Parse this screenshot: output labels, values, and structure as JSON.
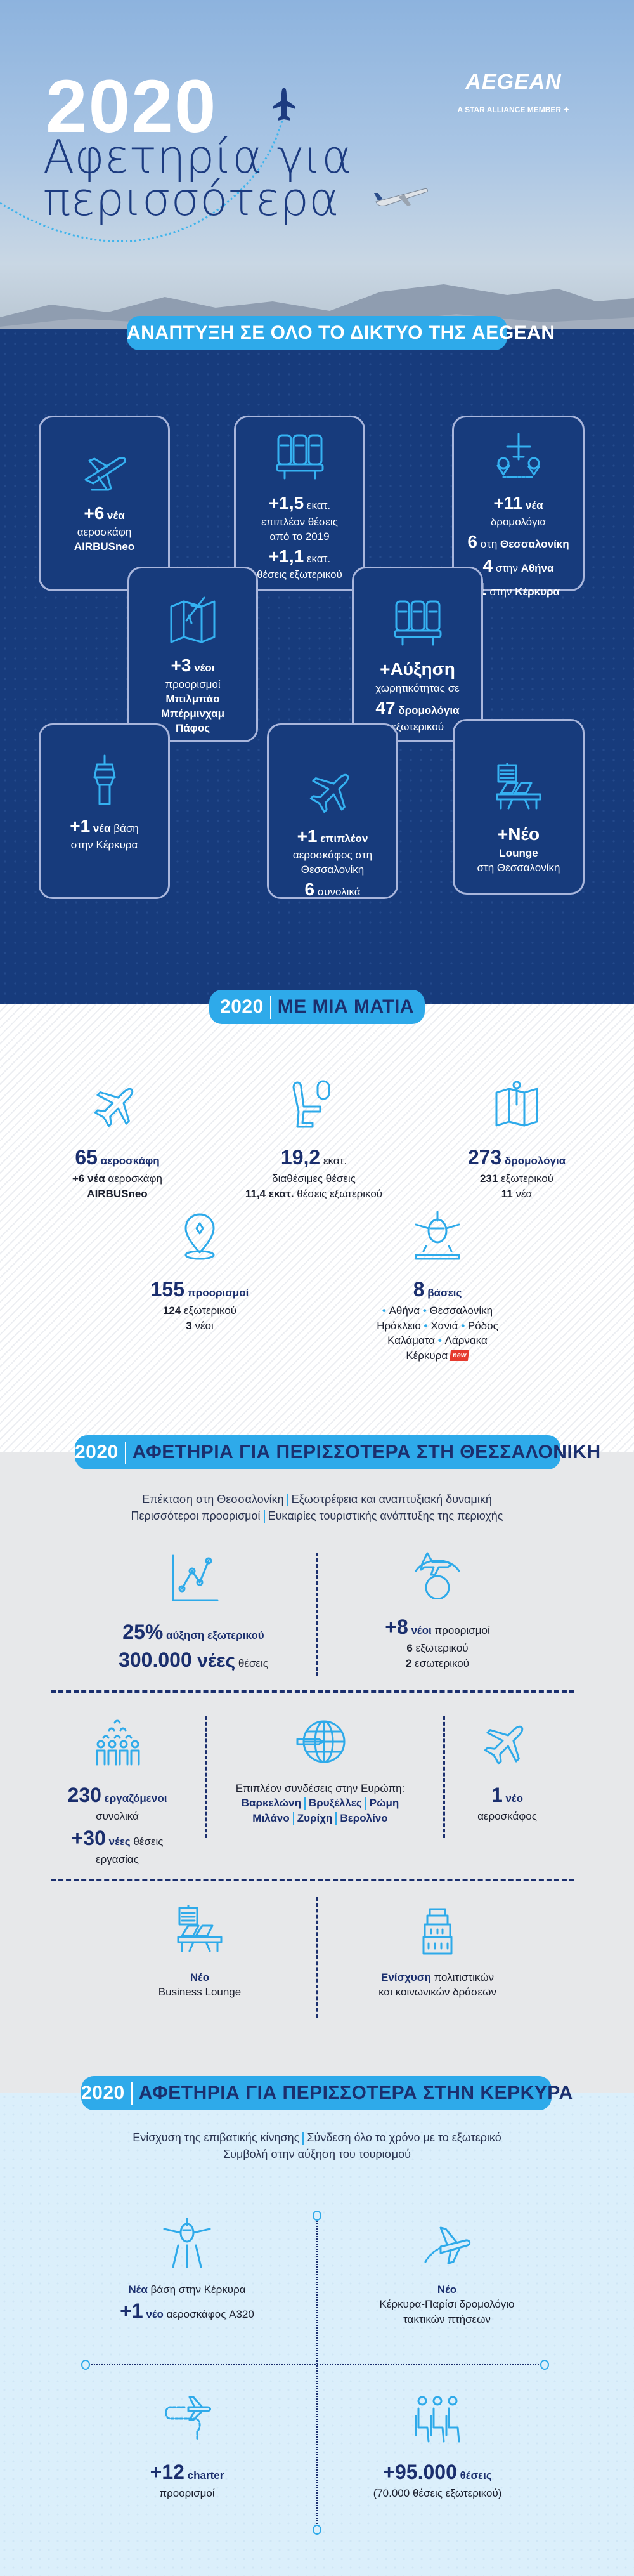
{
  "hero": {
    "year": "2020",
    "title_line1": "Αφετηρία για",
    "title_line2": "περισσότερα",
    "logo_text": "AEGEAN",
    "logo_tagline": "A STAR ALLIANCE MEMBER"
  },
  "colors": {
    "navy": "#173b7c",
    "accent": "#2eaaea",
    "text_navy": "#1b2f6e",
    "gray": "#e7e8ea",
    "light_blue": "#dbeffb",
    "new_badge": "#e63a2e"
  },
  "network": {
    "header": "ΑΝΑΠΤΥΞΗ ΣΕ ΟΛΟ ΤΟ ΔΙΚΤΥΟ ΤΗΣ AEGEAN",
    "boxes": [
      {
        "icon": "airplane-takeoff-icon",
        "lines": [
          [
            {
              "t": "+6",
              "s": "big"
            },
            {
              "t": " νέα",
              "s": "b"
            }
          ],
          [
            {
              "t": "αεροσκάφη"
            }
          ],
          [
            {
              "t": "AIRBUSneo",
              "s": "b"
            }
          ]
        ]
      },
      {
        "icon": "seats-row-icon",
        "lines": [
          [
            {
              "t": "+1,5",
              "s": "big"
            },
            {
              "t": " εκατ."
            }
          ],
          [
            {
              "t": "επιπλέον θέσεις"
            }
          ],
          [
            {
              "t": "από το 2019"
            }
          ],
          [
            {
              "t": "+1,1",
              "s": "big"
            },
            {
              "t": " εκατ."
            }
          ],
          [
            {
              "t": "θέσεις εξωτερικού"
            }
          ]
        ]
      },
      {
        "icon": "route-plane-icon",
        "lines": [
          [
            {
              "t": "+11",
              "s": "big"
            },
            {
              "t": " νέα",
              "s": "b"
            }
          ],
          [
            {
              "t": "δρομολόγια"
            }
          ],
          [
            {
              "t": "6",
              "s": "big"
            },
            {
              "t": " στη "
            },
            {
              "t": "Θεσσαλονίκη",
              "s": "b"
            }
          ],
          [
            {
              "t": "4",
              "s": "big"
            },
            {
              "t": " στην "
            },
            {
              "t": "Αθήνα",
              "s": "b"
            }
          ],
          [
            {
              "t": "1",
              "s": "big"
            },
            {
              "t": " στην "
            },
            {
              "t": "Κέρκυρα",
              "s": "b"
            }
          ]
        ]
      },
      {
        "icon": "map-plane-icon",
        "lines": [
          [
            {
              "t": "+3",
              "s": "big"
            },
            {
              "t": " νέοι",
              "s": "b"
            }
          ],
          [
            {
              "t": "προορισμοί"
            }
          ],
          [
            {
              "t": "Μπιλμπάο",
              "s": "b"
            }
          ],
          [
            {
              "t": "Μπέρμινχαμ",
              "s": "b"
            }
          ],
          [
            {
              "t": "Πάφος",
              "s": "b"
            }
          ]
        ]
      },
      {
        "icon": "seats-row-icon",
        "lines": [
          [
            {
              "t": "+Αύξηση",
              "s": "big"
            }
          ],
          [
            {
              "t": "χωρητικότητας σε"
            }
          ],
          [
            {
              "t": "47",
              "s": "big"
            },
            {
              "t": " δρομολόγια",
              "s": "b"
            }
          ],
          [
            {
              "t": "εξωτερικού"
            }
          ]
        ]
      },
      {
        "icon": "control-tower-icon",
        "lines": [
          [
            {
              "t": "+1",
              "s": "big"
            },
            {
              "t": " νέα",
              "s": "b"
            },
            {
              "t": " βάση"
            }
          ],
          [
            {
              "t": "στην Κέρκυρα"
            }
          ]
        ]
      },
      {
        "icon": "airplane-icon",
        "lines": [
          [
            {
              "t": "+1",
              "s": "big"
            },
            {
              "t": " επιπλέον",
              "s": "b"
            }
          ],
          [
            {
              "t": "αεροσκάφος στη"
            }
          ],
          [
            {
              "t": "Θεσσαλονίκη"
            }
          ],
          [
            {
              "t": "6",
              "s": "big"
            },
            {
              "t": " συνολικά"
            }
          ]
        ]
      },
      {
        "icon": "lounge-icon",
        "lines": [
          [
            {
              "t": "+Νέο",
              "s": "big"
            }
          ],
          [
            {
              "t": "Lounge",
              "s": "b"
            }
          ],
          [
            {
              "t": "στη Θεσσαλονίκη"
            }
          ]
        ]
      }
    ]
  },
  "glance": {
    "year": "2020",
    "header": "ΜΕ ΜΙΑ ΜΑΤΙΑ",
    "items": [
      {
        "icon": "airplane-icon",
        "lines": [
          [
            {
              "t": "65",
              "s": "big"
            },
            {
              "t": " αεροσκάφη",
              "s": "b"
            }
          ],
          [
            {
              "t": "+6 νέα",
              "s": "k"
            },
            {
              "t": " αεροσκάφη"
            }
          ],
          [
            {
              "t": "AIRBUSneo",
              "s": "k"
            }
          ]
        ]
      },
      {
        "icon": "seat-window-icon",
        "lines": [
          [
            {
              "t": "19,2",
              "s": "big"
            },
            {
              "t": " εκατ."
            }
          ],
          [
            {
              "t": "διαθέσιμες θέσεις"
            }
          ],
          [
            {
              "t": "11,4 εκατ.",
              "s": "k"
            },
            {
              "t": " θέσεις εξωτερικού"
            }
          ]
        ]
      },
      {
        "icon": "map-pin-icon",
        "lines": [
          [
            {
              "t": "273",
              "s": "big"
            },
            {
              "t": " δρομολόγια",
              "s": "b"
            }
          ],
          [
            {
              "t": "231",
              "s": "k"
            },
            {
              "t": " εξωτερικού"
            }
          ],
          [
            {
              "t": "11",
              "s": "k"
            },
            {
              "t": " νέα"
            }
          ]
        ]
      },
      {
        "icon": "location-pin-icon",
        "lines": [
          [
            {
              "t": "155",
              "s": "big"
            },
            {
              "t": " προορισμοί",
              "s": "b"
            }
          ],
          [
            {
              "t": "124",
              "s": "k"
            },
            {
              "t": " εξωτερικού"
            }
          ],
          [
            {
              "t": "3",
              "s": "k"
            },
            {
              "t": " νέοι"
            }
          ]
        ]
      },
      {
        "icon": "aircraft-base-icon",
        "lines": [
          [
            {
              "t": "8",
              "s": "big"
            },
            {
              "t": " βάσεις",
              "s": "b"
            }
          ],
          [
            {
              "t": "• ",
              "s": "bul"
            },
            {
              "t": "Αθήνα "
            },
            {
              "t": "• ",
              "s": "bul"
            },
            {
              "t": "Θεσσαλονίκη"
            }
          ],
          [
            {
              "t": "Ηράκλειο "
            },
            {
              "t": "• ",
              "s": "bul"
            },
            {
              "t": "Χανιά "
            },
            {
              "t": "• ",
              "s": "bul"
            },
            {
              "t": "Ρόδος"
            }
          ],
          [
            {
              "t": "Καλάματα "
            },
            {
              "t": "• ",
              "s": "bul"
            },
            {
              "t": "Λάρνακα"
            }
          ],
          [
            {
              "t": "Κέρκυρα"
            },
            {
              "t": "new",
              "s": "new"
            }
          ]
        ]
      }
    ]
  },
  "thessaloniki": {
    "year": "2020",
    "header": "ΑΦΕΤΗΡΙΑ ΓΙΑ ΠΕΡΙΣΣΟΤΕΡΑ ΣΤΗ ΘΕΣΣΑΛΟΝΙΚΗ",
    "subtitle": [
      [
        "Επέκταση στη Θεσσαλονίκη",
        "Εξωστρέφεια και αναπτυξιακή δυναμική"
      ],
      [
        "Περισσότεροι προορισμοί",
        "Ευκαιρίες τουριστικής ανάπτυξης της περιοχής"
      ]
    ],
    "items": [
      {
        "icon": "growth-chart-icon",
        "lines": [
          [
            {
              "t": "25%",
              "s": "big"
            },
            {
              "t": " αύξηση εξωτερικού",
              "s": "b"
            }
          ],
          [
            {
              "t": "300.000",
              "s": "big"
            },
            {
              "t": " νέες",
              "s": "bb"
            },
            {
              "t": " θέσεις"
            }
          ]
        ]
      },
      {
        "icon": "globe-plane-icon",
        "lines": [
          [
            {
              "t": "+8",
              "s": "big"
            },
            {
              "t": " νέοι",
              "s": "b"
            },
            {
              "t": " προορισμοί"
            }
          ],
          [
            {
              "t": "6",
              "s": "k"
            },
            {
              "t": " εξωτερικού"
            }
          ],
          [
            {
              "t": "2",
              "s": "k"
            },
            {
              "t": " εσωτερικού"
            }
          ]
        ]
      },
      {
        "icon": "employees-icon",
        "lines": [
          [
            {
              "t": "230",
              "s": "big"
            },
            {
              "t": " εργαζόμενοι",
              "s": "b"
            }
          ],
          [
            {
              "t": "συνολικά"
            }
          ],
          [
            {
              "t": "+30",
              "s": "big"
            },
            {
              "t": " νέες",
              "s": "b"
            },
            {
              "t": " θέσεις"
            }
          ],
          [
            {
              "t": "εργασίας"
            }
          ]
        ]
      },
      {
        "icon": "globe-connections-icon",
        "lines": [
          [
            {
              "t": "Επιπλέον συνδέσεις στην Ευρώπη:"
            }
          ],
          [
            {
              "t": " "
            }
          ],
          [
            {
              "t": "Βαρκελώνη",
              "s": "b"
            },
            {
              "t": "|",
              "s": "sep"
            },
            {
              "t": "Βρυξέλλες",
              "s": "b"
            },
            {
              "t": "|",
              "s": "sep"
            },
            {
              "t": "Ρώμη",
              "s": "b"
            }
          ],
          [
            {
              "t": "Μιλάνο",
              "s": "b"
            },
            {
              "t": "|",
              "s": "sep"
            },
            {
              "t": "Ζυρίχη",
              "s": "b"
            },
            {
              "t": "|",
              "s": "sep"
            },
            {
              "t": "Βερολίνο",
              "s": "b"
            }
          ]
        ]
      },
      {
        "icon": "airplane-icon",
        "lines": [
          [
            {
              "t": "1",
              "s": "big"
            },
            {
              "t": " νέο",
              "s": "b"
            }
          ],
          [
            {
              "t": "αεροσκάφος"
            }
          ]
        ]
      },
      {
        "icon": "lounge-icon",
        "lines": [
          [
            {
              "t": "Νέο",
              "s": "b"
            }
          ],
          [
            {
              "t": "Business Lounge"
            }
          ]
        ]
      },
      {
        "icon": "white-tower-icon",
        "lines": [
          [
            {
              "t": "Ενίσχυση",
              "s": "b"
            },
            {
              "t": " πολιτιστικών"
            }
          ],
          [
            {
              "t": "και κοινωνικών δράσεων"
            }
          ]
        ]
      }
    ]
  },
  "corfu": {
    "year": "2020",
    "header": "ΑΦΕΤΗΡΙΑ ΓΙΑ ΠΕΡΙΣΣΟΤΕΡΑ ΣΤΗΝ ΚΕΡΚΥΡΑ",
    "subtitle": [
      [
        "Ενίσχυση της επιβατικής κίνησης",
        "Σύνδεση όλο το χρόνο με το εξωτερικό"
      ],
      [
        "Συμβολή στην αύξηση του τουρισμού"
      ]
    ],
    "items": [
      {
        "icon": "runway-plane-icon",
        "lines": [
          [
            {
              "t": "Νέα",
              "s": "b"
            },
            {
              "t": " βάση στην Κέρκυρα"
            }
          ],
          [
            {
              "t": " "
            }
          ],
          [
            {
              "t": "+1",
              "s": "big"
            },
            {
              "t": " νέο",
              "s": "b"
            },
            {
              "t": " αεροσκάφος A320"
            }
          ]
        ]
      },
      {
        "icon": "takeoff-route-icon",
        "lines": [
          [
            {
              "t": "Νέο",
              "s": "b"
            }
          ],
          [
            {
              "t": "Κέρκυρα-Παρίσι δρομολόγιο"
            }
          ],
          [
            {
              "t": "τακτικών πτήσεων"
            }
          ]
        ]
      },
      {
        "icon": "charter-route-icon",
        "lines": [
          [
            {
              "t": "+12",
              "s": "big"
            },
            {
              "t": " charter",
              "s": "b"
            }
          ],
          [
            {
              "t": "προορισμοί"
            }
          ]
        ]
      },
      {
        "icon": "passengers-seated-icon",
        "lines": [
          [
            {
              "t": "+95.000",
              "s": "big"
            },
            {
              "t": " θέσεις",
              "s": "b"
            }
          ],
          [
            {
              "t": "(70.000 θέσεις εξωτερικού)"
            }
          ]
        ]
      }
    ]
  }
}
